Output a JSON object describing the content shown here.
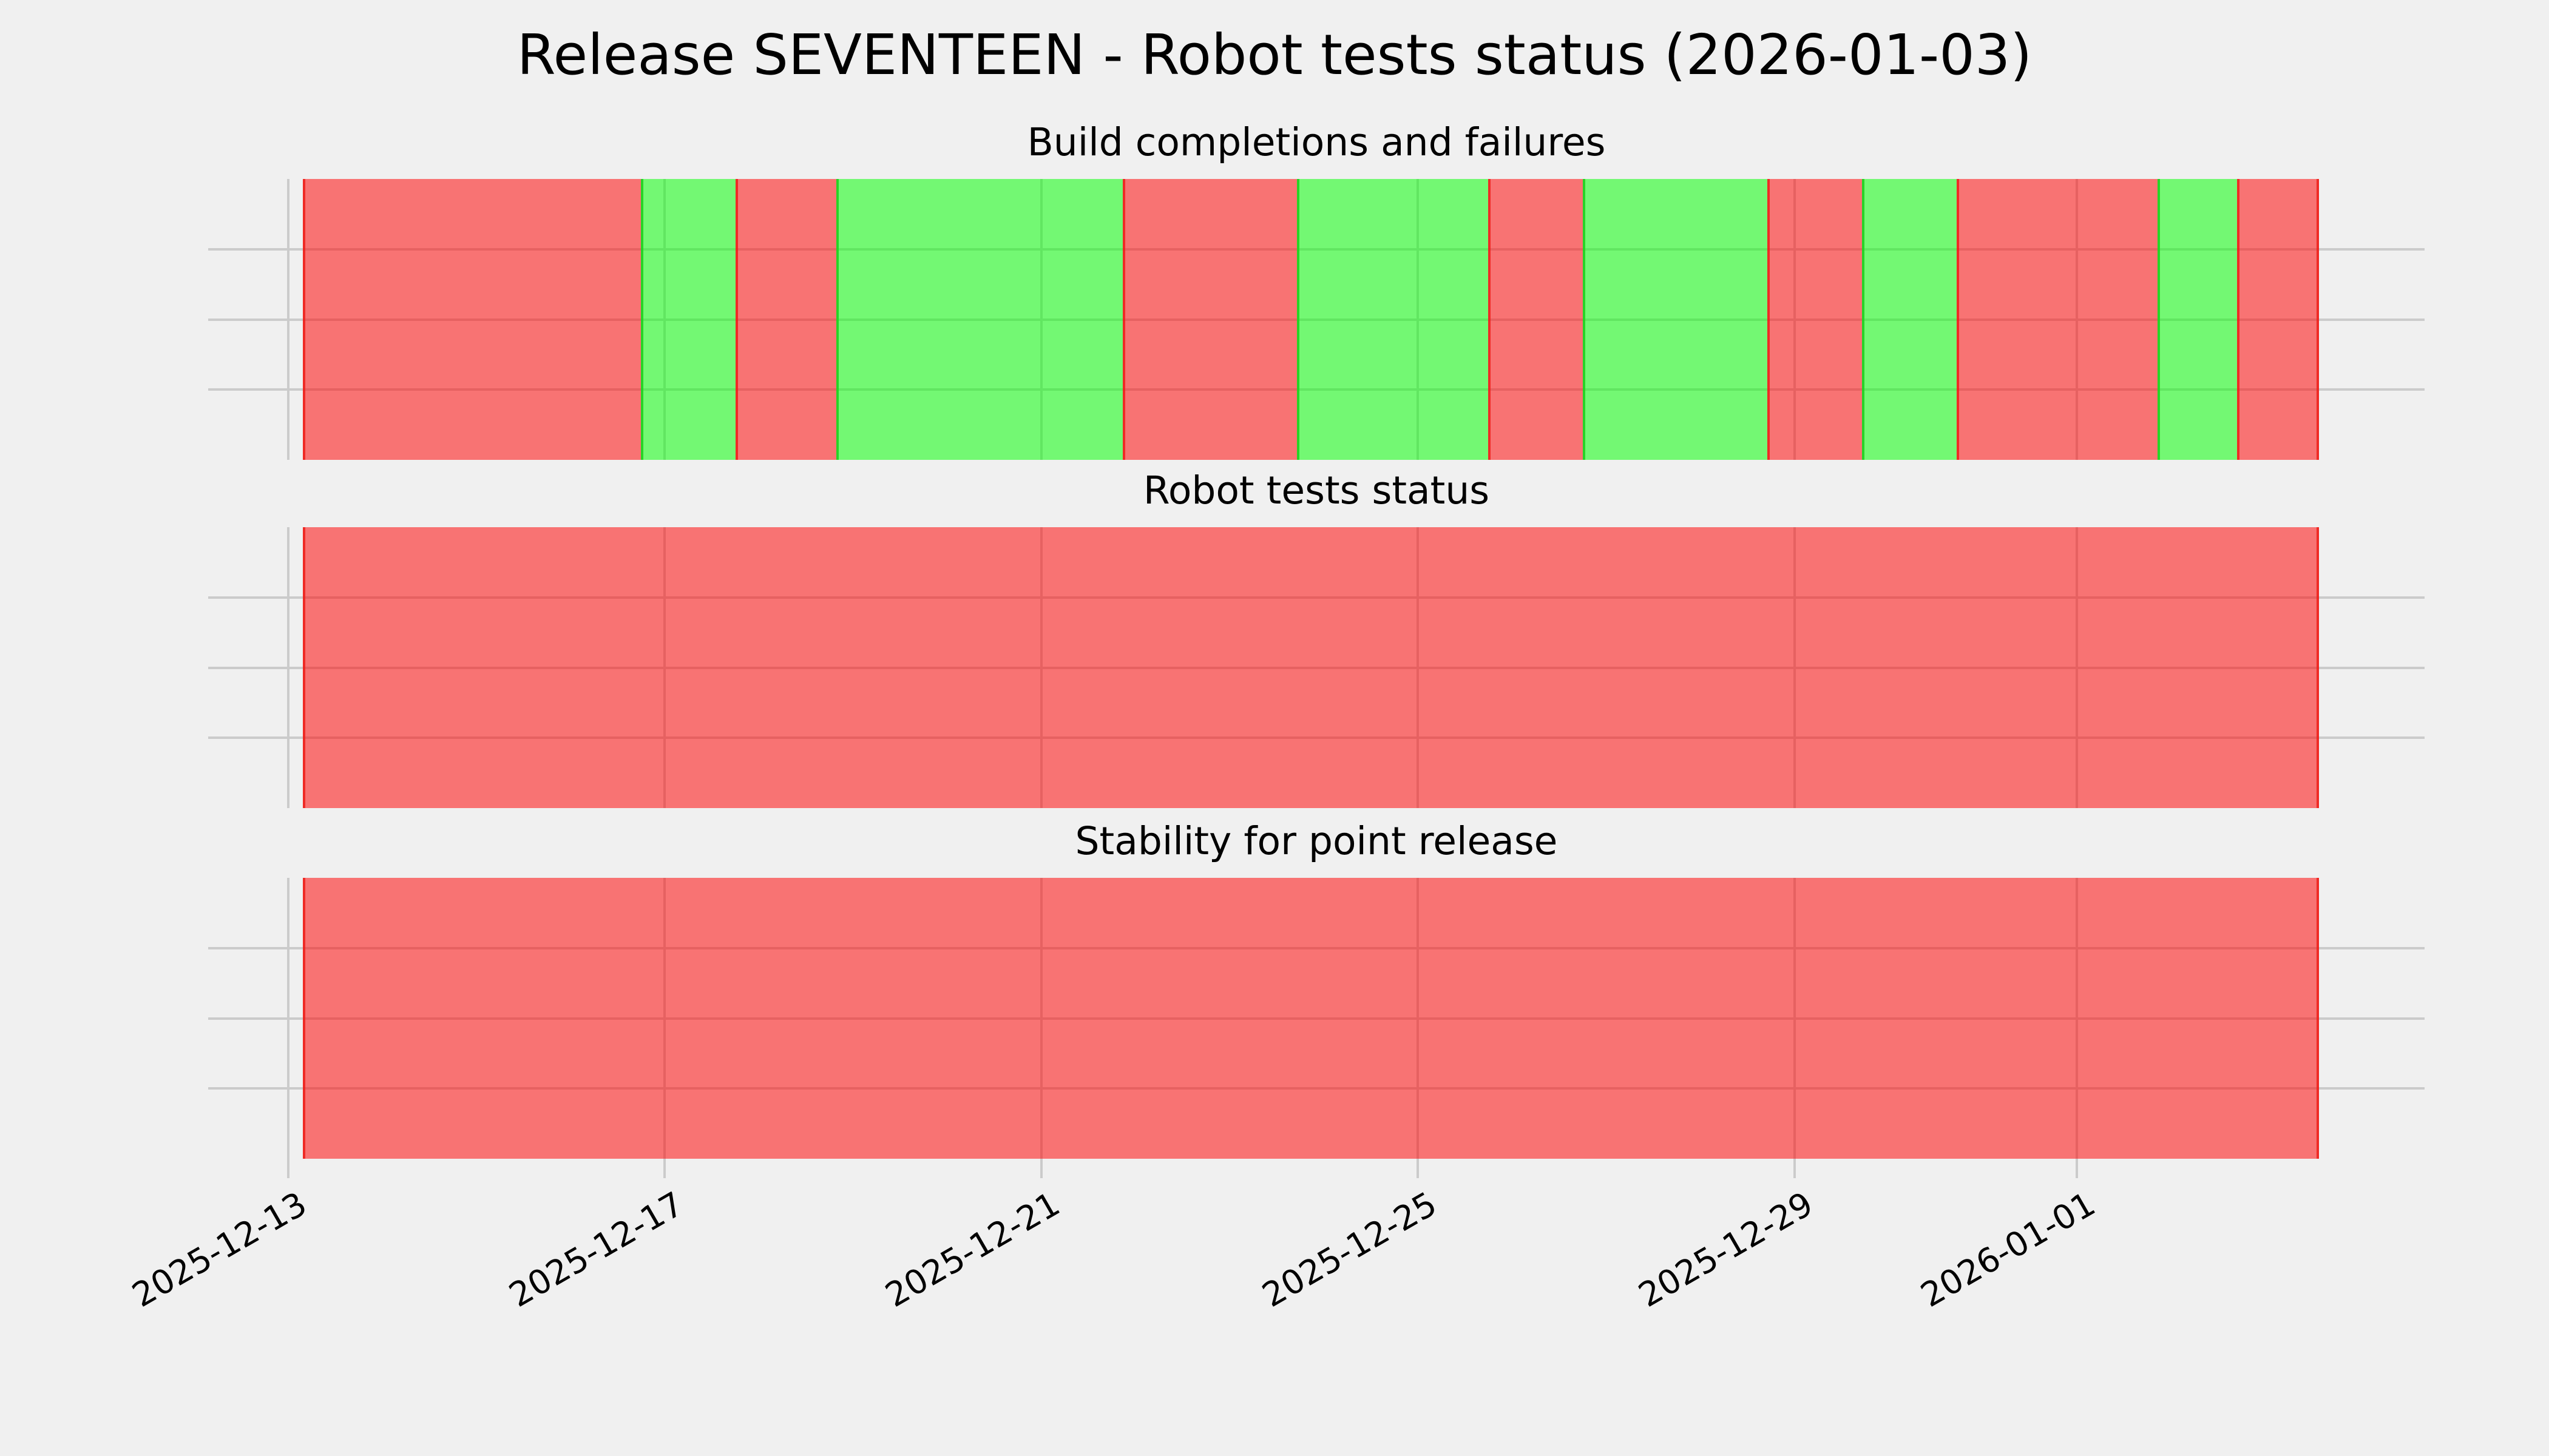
{
  "title": "Release SEVENTEEN - Robot tests status (2026-01-03)",
  "colors": {
    "background": "#f0f0f0",
    "grid": "#cbcbcb",
    "text": "#000000",
    "fail_fill": "rgba(255,0,0,0.52)",
    "pass_fill": "rgba(0,255,0,0.52)",
    "fail_edge": "rgba(237,30,25,0.85)",
    "pass_edge": "rgba(35,210,35,0.95)"
  },
  "chart_data": {
    "type": "timeline",
    "title": "Release SEVENTEEN - Robot tests status (2026-01-03)",
    "day_zero": "2025-12-13",
    "x_range_days": [
      -0.851,
      22.695
    ],
    "grid": true,
    "y_range": [
      0,
      4
    ],
    "y_gridlines": [
      1,
      2,
      3
    ],
    "x_ticks": [
      {
        "label": "2025-12-13",
        "day": 0
      },
      {
        "label": "2025-12-17",
        "day": 4
      },
      {
        "label": "2025-12-21",
        "day": 8
      },
      {
        "label": "2025-12-25",
        "day": 12
      },
      {
        "label": "2025-12-29",
        "day": 16
      },
      {
        "label": "2026-01-01",
        "day": 19
      }
    ],
    "panels": [
      {
        "title": "Build completions and failures",
        "segments": [
          {
            "status": "fail",
            "start_day": 0.155,
            "end_day": 3.744,
            "start": "2025-12-13T03:43",
            "end": "2025-12-16T17:51"
          },
          {
            "status": "pass",
            "start_day": 3.744,
            "end_day": 4.749,
            "start": "2025-12-16T17:51",
            "end": "2025-12-17T17:59"
          },
          {
            "status": "fail",
            "start_day": 4.749,
            "end_day": 5.825,
            "start": "2025-12-17T17:59",
            "end": "2025-12-18T19:48"
          },
          {
            "status": "pass",
            "start_day": 5.825,
            "end_day": 8.866,
            "start": "2025-12-18T19:48",
            "end": "2025-12-21T20:47"
          },
          {
            "status": "fail",
            "start_day": 8.866,
            "end_day": 10.715,
            "start": "2025-12-21T20:47",
            "end": "2025-12-23T17:10"
          },
          {
            "status": "pass",
            "start_day": 10.715,
            "end_day": 12.745,
            "start": "2025-12-23T17:10",
            "end": "2025-12-25T17:53"
          },
          {
            "status": "fail",
            "start_day": 12.745,
            "end_day": 13.75,
            "start": "2025-12-25T17:53",
            "end": "2025-12-26T18:00"
          },
          {
            "status": "pass",
            "start_day": 13.75,
            "end_day": 15.715,
            "start": "2025-12-26T18:00",
            "end": "2025-12-28T17:10"
          },
          {
            "status": "fail",
            "start_day": 15.715,
            "end_day": 16.72,
            "start": "2025-12-28T17:10",
            "end": "2025-12-29T17:17"
          },
          {
            "status": "pass",
            "start_day": 16.72,
            "end_day": 17.726,
            "start": "2025-12-29T17:17",
            "end": "2025-12-30T17:25"
          },
          {
            "status": "fail",
            "start_day": 17.726,
            "end_day": 19.858,
            "start": "2025-12-30T17:25",
            "end": "2026-01-01T20:35"
          },
          {
            "status": "pass",
            "start_day": 19.858,
            "end_day": 20.702,
            "start": "2026-01-01T20:35",
            "end": "2026-01-02T16:51"
          },
          {
            "status": "fail",
            "start_day": 20.702,
            "end_day": 21.572,
            "start": "2026-01-02T16:51",
            "end": "2026-01-03T13:44"
          }
        ]
      },
      {
        "title": "Robot tests status",
        "segments": [
          {
            "status": "fail",
            "start_day": 0.155,
            "end_day": 21.572,
            "start": "2025-12-13T03:43",
            "end": "2026-01-03T13:44"
          }
        ]
      },
      {
        "title": "Stability for point release",
        "segments": [
          {
            "status": "fail",
            "start_day": 0.155,
            "end_day": 21.572,
            "start": "2025-12-13T03:43",
            "end": "2026-01-03T13:44"
          }
        ]
      }
    ]
  }
}
